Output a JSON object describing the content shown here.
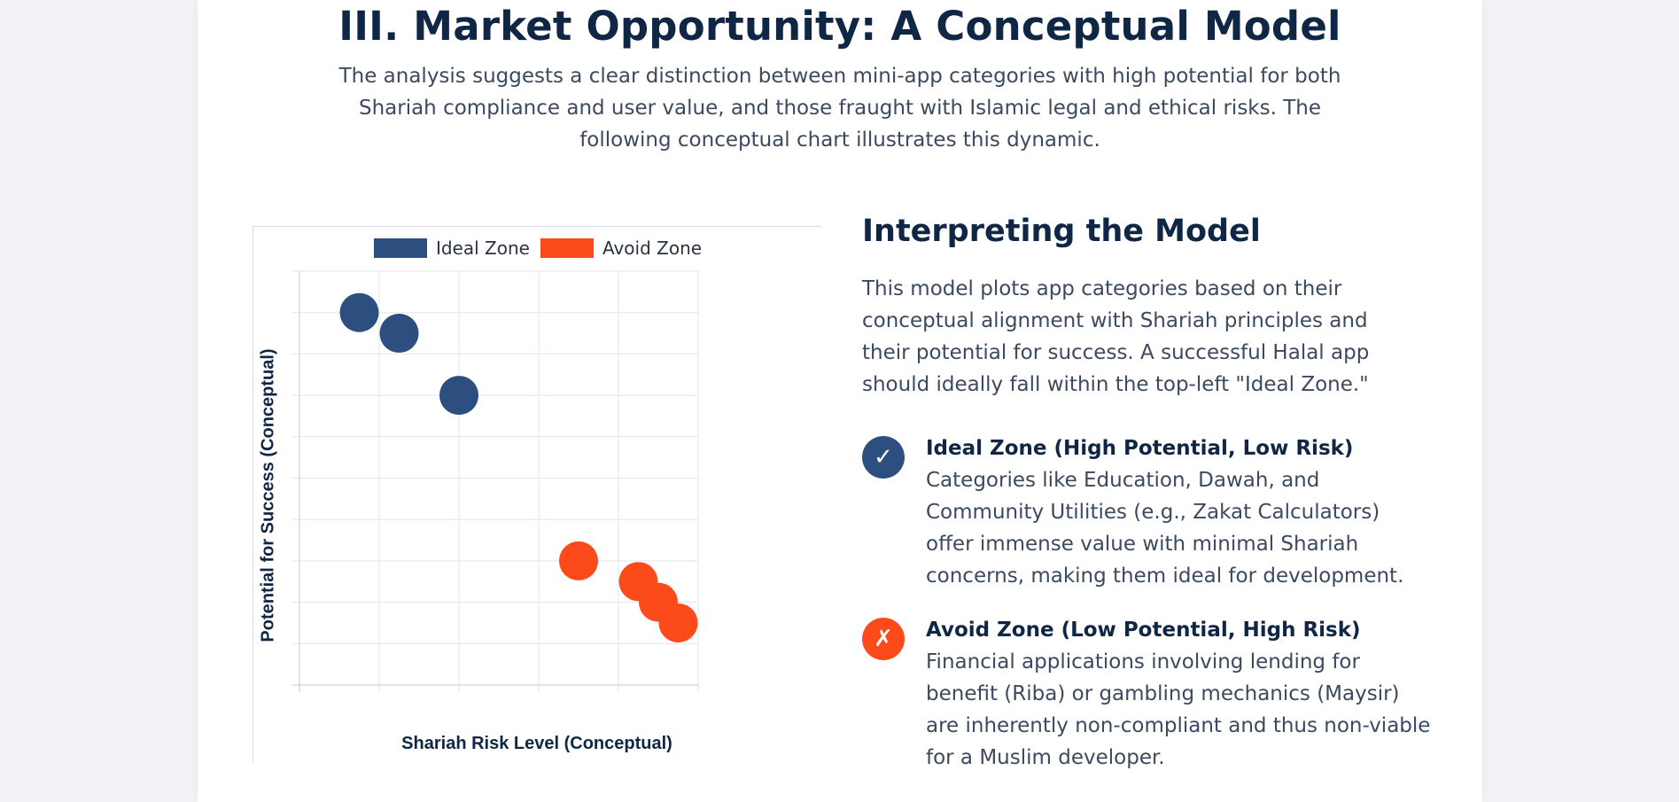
{
  "page": {
    "title": "III. Market Opportunity: A Conceptual Model",
    "intro": "The analysis suggests a clear distinction between mini-app categories with high potential for both Shariah compliance and user value, and those fraught with Islamic legal and ethical risks. The following conceptual chart illustrates this dynamic."
  },
  "side": {
    "title": "Interpreting the Model",
    "body": "This model plots app categories based on their conceptual alignment with Shariah principles and their potential for success. A successful Halal app should ideally fall within the top-left \"Ideal Zone.\"",
    "zones": [
      {
        "icon": "check-icon",
        "glyph": "✓",
        "color": "#2d4f80",
        "title": "Ideal Zone (High Potential, Low Risk)",
        "description": "Categories like Education, Dawah, and Community Utilities (e.g., Zakat Calculators) offer immense value with minimal Shariah concerns, making them ideal for development."
      },
      {
        "icon": "cross-icon",
        "glyph": "✗",
        "color": "#fc4a1a",
        "title": "Avoid Zone (Low Potential, High Risk)",
        "description": "Financial applications involving lending for benefit (Riba) or gambling mechanics (Maysir) are inherently non-compliant and thus non-viable for a Muslim developer."
      }
    ]
  },
  "chart_data": {
    "type": "scatter",
    "title": "",
    "xlabel": "Shariah Risk Level (Conceptual)",
    "ylabel": "Potential for Success (Conceptual)",
    "xlim": [
      0,
      10
    ],
    "ylim": [
      0,
      10
    ],
    "grid": true,
    "tick_labels_shown": false,
    "legend_position": "top",
    "series": [
      {
        "name": "Ideal Zone",
        "color": "#2d4f80",
        "points": [
          {
            "x": 1.5,
            "y": 9
          },
          {
            "x": 2.5,
            "y": 8.5
          },
          {
            "x": 4,
            "y": 7
          }
        ]
      },
      {
        "name": "Avoid Zone",
        "color": "#fc4a1a",
        "points": [
          {
            "x": 7,
            "y": 3
          },
          {
            "x": 8.5,
            "y": 2.5
          },
          {
            "x": 9,
            "y": 2
          },
          {
            "x": 9.5,
            "y": 1.5
          }
        ]
      }
    ]
  }
}
